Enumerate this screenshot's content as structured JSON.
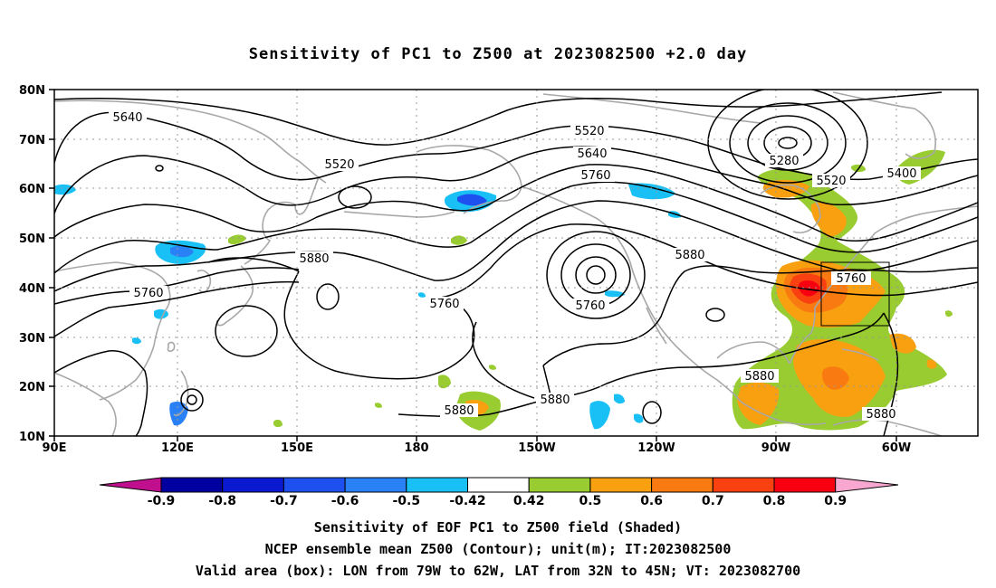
{
  "title": "Sensitivity of PC1 to Z500 at 2023082500 +2.0 day",
  "lat_labels": [
    "80N",
    "70N",
    "60N",
    "50N",
    "40N",
    "30N",
    "20N",
    "10N"
  ],
  "lon_labels": [
    "90E",
    "120E",
    "150E",
    "180",
    "150W",
    "120W",
    "90W",
    "60W"
  ],
  "contour_labels": [
    "5640",
    "5520",
    "5520",
    "5640",
    "5760",
    "5280",
    "5520",
    "5400",
    "5760",
    "5880",
    "5760",
    "5760",
    "5880",
    "5760",
    "5880",
    "5880",
    "5880",
    "5880"
  ],
  "box_label": "5760",
  "colorbar": {
    "ticks": [
      "-0.9",
      "-0.8",
      "-0.7",
      "-0.6",
      "-0.5",
      "-0.42",
      "0.42",
      "0.5",
      "0.6",
      "0.7",
      "0.8",
      "0.9"
    ],
    "colors": [
      "#c0108e",
      "#0000a0",
      "#0a18d0",
      "#1e50f0",
      "#2a80f5",
      "#18c0f5",
      "#ffffff",
      "#98cc30",
      "#f8a010",
      "#f87a10",
      "#f84010",
      "#f80010",
      "#f8a8d0"
    ]
  },
  "captions": [
    "Sensitivity of EOF PC1 to Z500 field (Shaded)",
    "NCEP ensemble mean Z500 (Contour); unit(m); IT:2023082500",
    "Valid area (box): LON from 79W to 62W, LAT from 32N to 45N; VT: 2023082700"
  ]
}
